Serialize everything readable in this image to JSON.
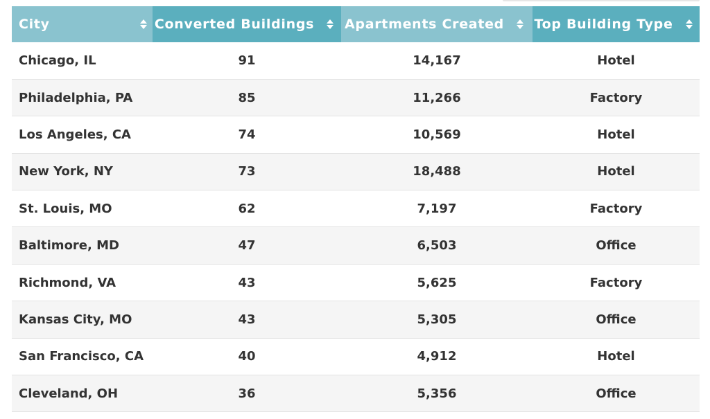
{
  "table": {
    "columns": [
      {
        "label": "City"
      },
      {
        "label": "Converted Buildings"
      },
      {
        "label": "Apartments Created"
      },
      {
        "label": "Top Building Type"
      }
    ],
    "sort_icon": "sort-updown-icon",
    "header_colors": {
      "light": "#8ac3cf",
      "dark": "#5bafbe"
    },
    "rows": [
      {
        "city": "Chicago, IL",
        "converted": "91",
        "apartments": "14,167",
        "type": "Hotel"
      },
      {
        "city": "Philadelphia, PA",
        "converted": "85",
        "apartments": "11,266",
        "type": "Factory"
      },
      {
        "city": "Los Angeles, CA",
        "converted": "74",
        "apartments": "10,569",
        "type": "Hotel"
      },
      {
        "city": "New York, NY",
        "converted": "73",
        "apartments": "18,488",
        "type": "Hotel"
      },
      {
        "city": "St. Louis, MO",
        "converted": "62",
        "apartments": "7,197",
        "type": "Factory"
      },
      {
        "city": "Baltimore, MD",
        "converted": "47",
        "apartments": "6,503",
        "type": "Office"
      },
      {
        "city": "Richmond, VA",
        "converted": "43",
        "apartments": "5,625",
        "type": "Factory"
      },
      {
        "city": "Kansas City, MO",
        "converted": "43",
        "apartments": "5,305",
        "type": "Office"
      },
      {
        "city": "San Francisco, CA",
        "converted": "40",
        "apartments": "4,912",
        "type": "Hotel"
      },
      {
        "city": "Cleveland, OH",
        "converted": "36",
        "apartments": "5,356",
        "type": "Office"
      }
    ]
  }
}
